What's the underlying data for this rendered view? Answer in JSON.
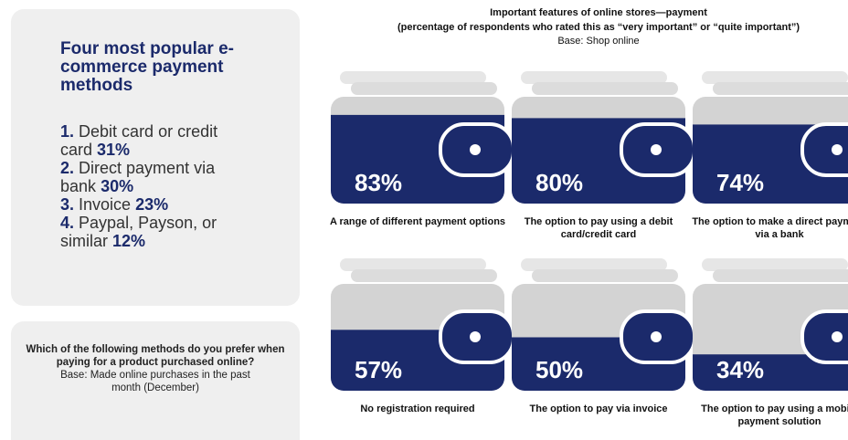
{
  "chart_data": {
    "type": "pictogram",
    "title": "Important features of online stores—payment",
    "subtitle": "(percentage of respondents who rated this as “very important” or “quite important”)",
    "note": "Base: Shop online",
    "categories": [
      "A range of different payment options",
      "The option to pay using a debit card/credit card",
      "The option to make a direct payment via a bank",
      "No registration required",
      "The option to pay via invoice",
      "The option to pay using a mobile payment solution"
    ],
    "values": [
      83,
      80,
      74,
      57,
      50,
      34
    ],
    "value_labels": [
      "83%",
      "80%",
      "74%",
      "57%",
      "50%",
      "34%"
    ],
    "color": "#1b2a6b"
  },
  "sidebar": {
    "title": "Four most popular e-commerce payment methods",
    "items": [
      {
        "number": "1.",
        "text": "Debit card or credit card",
        "share": "31%"
      },
      {
        "number": "2.",
        "text": "Direct payment via bank",
        "share": "30%"
      },
      {
        "number": "3.",
        "text": "Invoice",
        "share": "23%"
      },
      {
        "number": "4.",
        "text": "Paypal, Payson, or similar",
        "share": "12%"
      }
    ]
  },
  "question": {
    "text": "Which of the following methods do you prefer when paying for a product purchased online?",
    "base": "Base: Made online purchases in the past month (December)"
  }
}
